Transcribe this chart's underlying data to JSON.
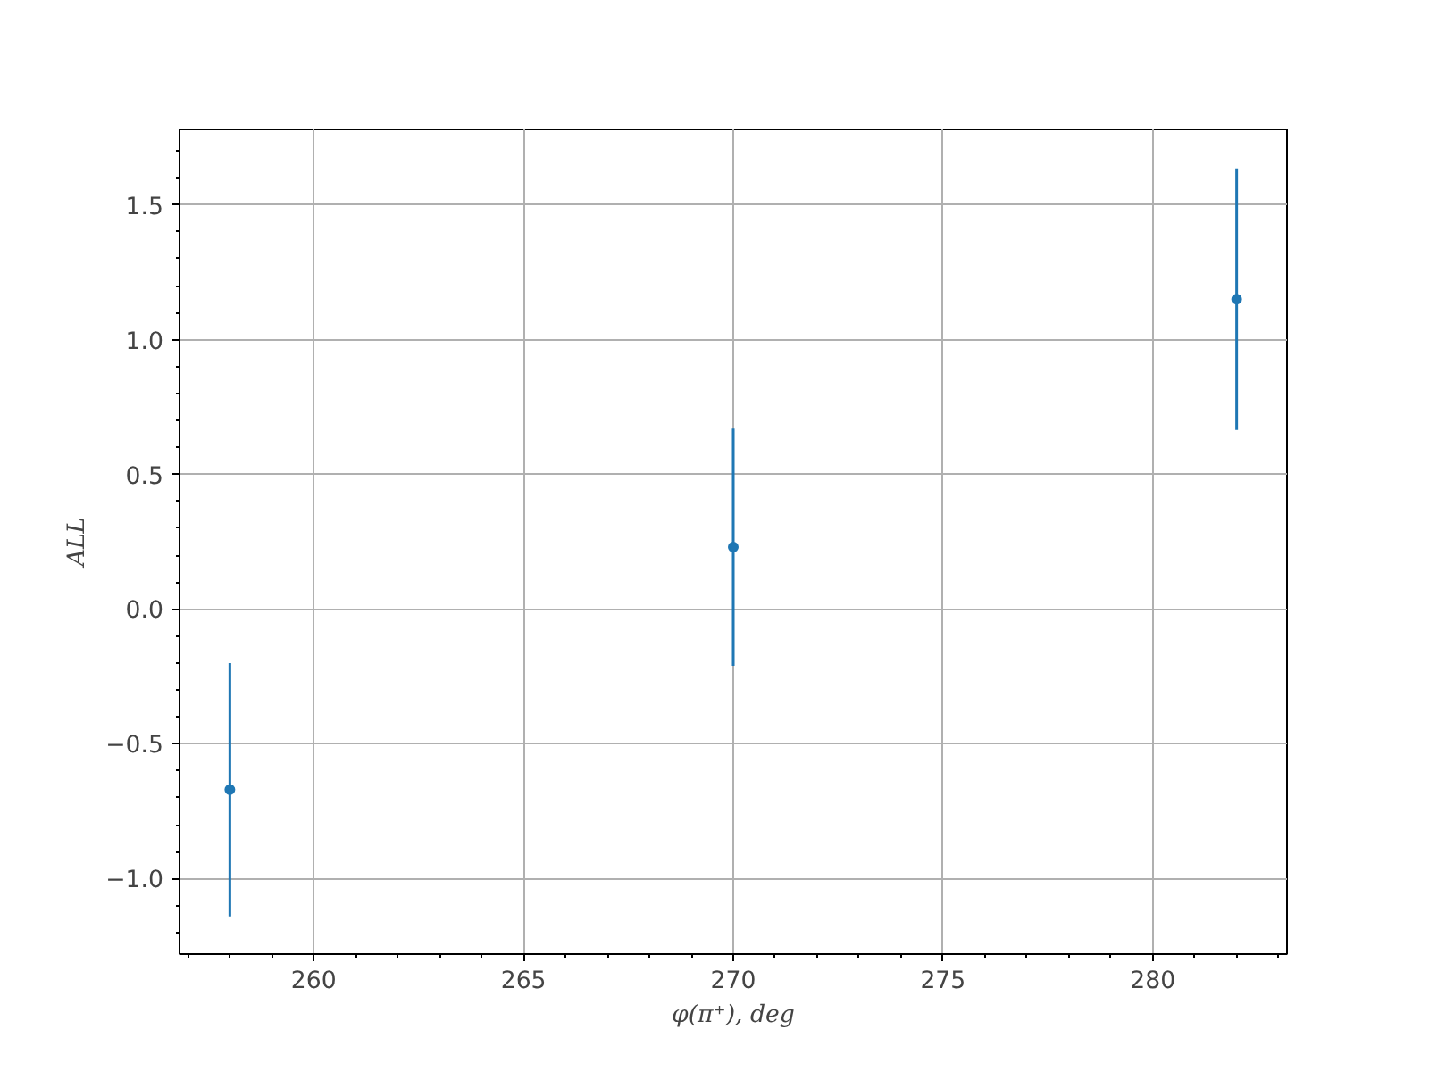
{
  "chart_data": {
    "type": "scatter",
    "xlabel": "φ(π⁺), deg",
    "ylabel": "ALL",
    "x": [
      258,
      270,
      282
    ],
    "series": [
      {
        "color": "#1f77b4",
        "values": [
          -0.67,
          0.23,
          1.15
        ],
        "errors": [
          0.47,
          0.44,
          0.485
        ]
      }
    ],
    "xlim": [
      256.8,
      283.2
    ],
    "ylim": [
      -1.28,
      1.78
    ],
    "xticks": [
      260,
      265,
      270,
      275,
      280
    ],
    "yticks": [
      {
        "value": -1,
        "label": "−1.0"
      },
      {
        "value": -0.5,
        "label": "−0.5"
      },
      {
        "value": 0,
        "label": "0.0"
      },
      0.5,
      {
        "value": 1,
        "label": "1.0"
      },
      1.5
    ],
    "grid": true,
    "marker": "circle"
  }
}
